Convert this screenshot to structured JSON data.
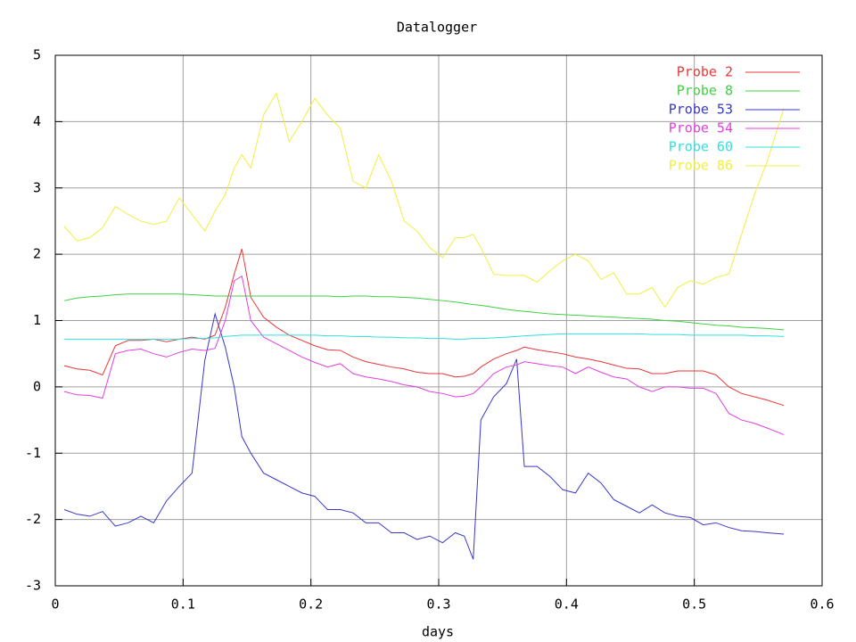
{
  "chart_data": {
    "type": "line",
    "title": "Datalogger",
    "x_label": "days",
    "x": [
      0.007,
      0.017,
      0.027,
      0.037,
      0.047,
      0.057,
      0.067,
      0.077,
      0.087,
      0.097,
      0.107,
      0.117,
      0.125,
      0.133,
      0.14,
      0.146,
      0.153,
      0.163,
      0.173,
      0.183,
      0.193,
      0.203,
      0.213,
      0.223,
      0.233,
      0.243,
      0.253,
      0.263,
      0.273,
      0.283,
      0.293,
      0.303,
      0.313,
      0.32,
      0.327,
      0.333,
      0.343,
      0.353,
      0.361,
      0.367,
      0.377,
      0.387,
      0.397,
      0.407,
      0.417,
      0.427,
      0.437,
      0.447,
      0.457,
      0.467,
      0.477,
      0.487,
      0.497,
      0.507,
      0.517,
      0.527,
      0.537,
      0.547,
      0.557,
      0.57
    ],
    "series": [
      {
        "name": "Probe 2",
        "color": "#e83838",
        "values": [
          0.32,
          0.27,
          0.25,
          0.18,
          0.62,
          0.7,
          0.7,
          0.72,
          0.68,
          0.72,
          0.75,
          0.72,
          0.78,
          1.2,
          1.7,
          2.08,
          1.35,
          1.05,
          0.9,
          0.78,
          0.7,
          0.62,
          0.56,
          0.55,
          0.45,
          0.38,
          0.34,
          0.3,
          0.27,
          0.22,
          0.2,
          0.2,
          0.15,
          0.16,
          0.2,
          0.3,
          0.42,
          0.5,
          0.55,
          0.6,
          0.56,
          0.53,
          0.5,
          0.45,
          0.42,
          0.38,
          0.33,
          0.28,
          0.27,
          0.2,
          0.2,
          0.24,
          0.24,
          0.24,
          0.18,
          0.0,
          -0.1,
          -0.15,
          -0.2,
          -0.28
        ]
      },
      {
        "name": "Probe 8",
        "color": "#40d040",
        "values": [
          1.3,
          1.34,
          1.36,
          1.37,
          1.39,
          1.4,
          1.4,
          1.4,
          1.4,
          1.4,
          1.39,
          1.38,
          1.37,
          1.37,
          1.37,
          1.37,
          1.37,
          1.37,
          1.37,
          1.37,
          1.37,
          1.37,
          1.37,
          1.36,
          1.37,
          1.37,
          1.36,
          1.36,
          1.35,
          1.34,
          1.32,
          1.3,
          1.28,
          1.26,
          1.24,
          1.23,
          1.2,
          1.17,
          1.15,
          1.14,
          1.12,
          1.1,
          1.09,
          1.08,
          1.07,
          1.06,
          1.05,
          1.04,
          1.03,
          1.02,
          1.0,
          0.99,
          0.97,
          0.95,
          0.93,
          0.92,
          0.9,
          0.89,
          0.88,
          0.86
        ]
      },
      {
        "name": "Probe 53",
        "color": "#3838c8",
        "values": [
          -1.85,
          -1.92,
          -1.95,
          -1.88,
          -2.1,
          -2.05,
          -1.95,
          -2.05,
          -1.72,
          -1.5,
          -1.3,
          0.4,
          1.1,
          0.6,
          0.0,
          -0.75,
          -1.0,
          -1.3,
          -1.4,
          -1.5,
          -1.6,
          -1.65,
          -1.85,
          -1.85,
          -1.9,
          -2.05,
          -2.05,
          -2.2,
          -2.2,
          -2.3,
          -2.25,
          -2.35,
          -2.2,
          -2.25,
          -2.6,
          -0.5,
          -0.15,
          0.05,
          0.42,
          -1.2,
          -1.2,
          -1.35,
          -1.55,
          -1.6,
          -1.3,
          -1.45,
          -1.7,
          -1.8,
          -1.9,
          -1.78,
          -1.9,
          -1.95,
          -1.97,
          -2.08,
          -2.05,
          -2.12,
          -2.17,
          -2.18,
          -2.2,
          -2.22
        ]
      },
      {
        "name": "Probe 54",
        "color": "#e040e0",
        "values": [
          -0.07,
          -0.12,
          -0.13,
          -0.17,
          0.5,
          0.55,
          0.57,
          0.5,
          0.45,
          0.52,
          0.57,
          0.55,
          0.58,
          1.0,
          1.6,
          1.67,
          1.0,
          0.75,
          0.65,
          0.55,
          0.45,
          0.37,
          0.3,
          0.35,
          0.2,
          0.15,
          0.12,
          0.08,
          0.03,
          0.0,
          -0.07,
          -0.1,
          -0.15,
          -0.14,
          -0.1,
          0.0,
          0.2,
          0.3,
          0.33,
          0.38,
          0.35,
          0.32,
          0.3,
          0.2,
          0.3,
          0.22,
          0.15,
          0.12,
          0.0,
          -0.07,
          0.0,
          0.0,
          -0.02,
          -0.02,
          -0.1,
          -0.4,
          -0.5,
          -0.55,
          -0.62,
          -0.72
        ]
      },
      {
        "name": "Probe 60",
        "color": "#30e0e0",
        "values": [
          0.72,
          0.72,
          0.72,
          0.72,
          0.72,
          0.72,
          0.72,
          0.72,
          0.72,
          0.72,
          0.73,
          0.73,
          0.74,
          0.76,
          0.77,
          0.78,
          0.78,
          0.78,
          0.78,
          0.78,
          0.78,
          0.78,
          0.77,
          0.77,
          0.76,
          0.76,
          0.75,
          0.75,
          0.74,
          0.74,
          0.73,
          0.73,
          0.72,
          0.72,
          0.73,
          0.73,
          0.74,
          0.75,
          0.76,
          0.77,
          0.78,
          0.79,
          0.8,
          0.8,
          0.8,
          0.8,
          0.8,
          0.8,
          0.8,
          0.79,
          0.79,
          0.79,
          0.78,
          0.78,
          0.78,
          0.78,
          0.78,
          0.77,
          0.77,
          0.76
        ]
      },
      {
        "name": "Probe 86",
        "color": "#f0f040",
        "values": [
          2.42,
          2.2,
          2.25,
          2.4,
          2.72,
          2.6,
          2.5,
          2.45,
          2.5,
          2.85,
          2.6,
          2.35,
          2.65,
          2.9,
          3.3,
          3.5,
          3.3,
          4.1,
          4.43,
          3.7,
          4.0,
          4.35,
          4.1,
          3.9,
          3.1,
          3.0,
          3.5,
          3.1,
          2.5,
          2.35,
          2.1,
          1.95,
          2.25,
          2.25,
          2.3,
          2.1,
          1.7,
          1.68,
          1.68,
          1.68,
          1.58,
          1.75,
          1.9,
          2.0,
          1.9,
          1.62,
          1.72,
          1.4,
          1.4,
          1.5,
          1.2,
          1.5,
          1.6,
          1.55,
          1.65,
          1.7,
          2.3,
          2.9,
          3.4,
          4.2
        ]
      }
    ],
    "xlim": [
      0,
      0.6
    ],
    "xticks": [
      0,
      0.1,
      0.2,
      0.3,
      0.4,
      0.5,
      0.6
    ],
    "ylim": [
      -3,
      5
    ],
    "yticks": [
      -3,
      -2,
      -1,
      0,
      1,
      2,
      3,
      4,
      5
    ],
    "grid": true,
    "legend": "top-right"
  }
}
